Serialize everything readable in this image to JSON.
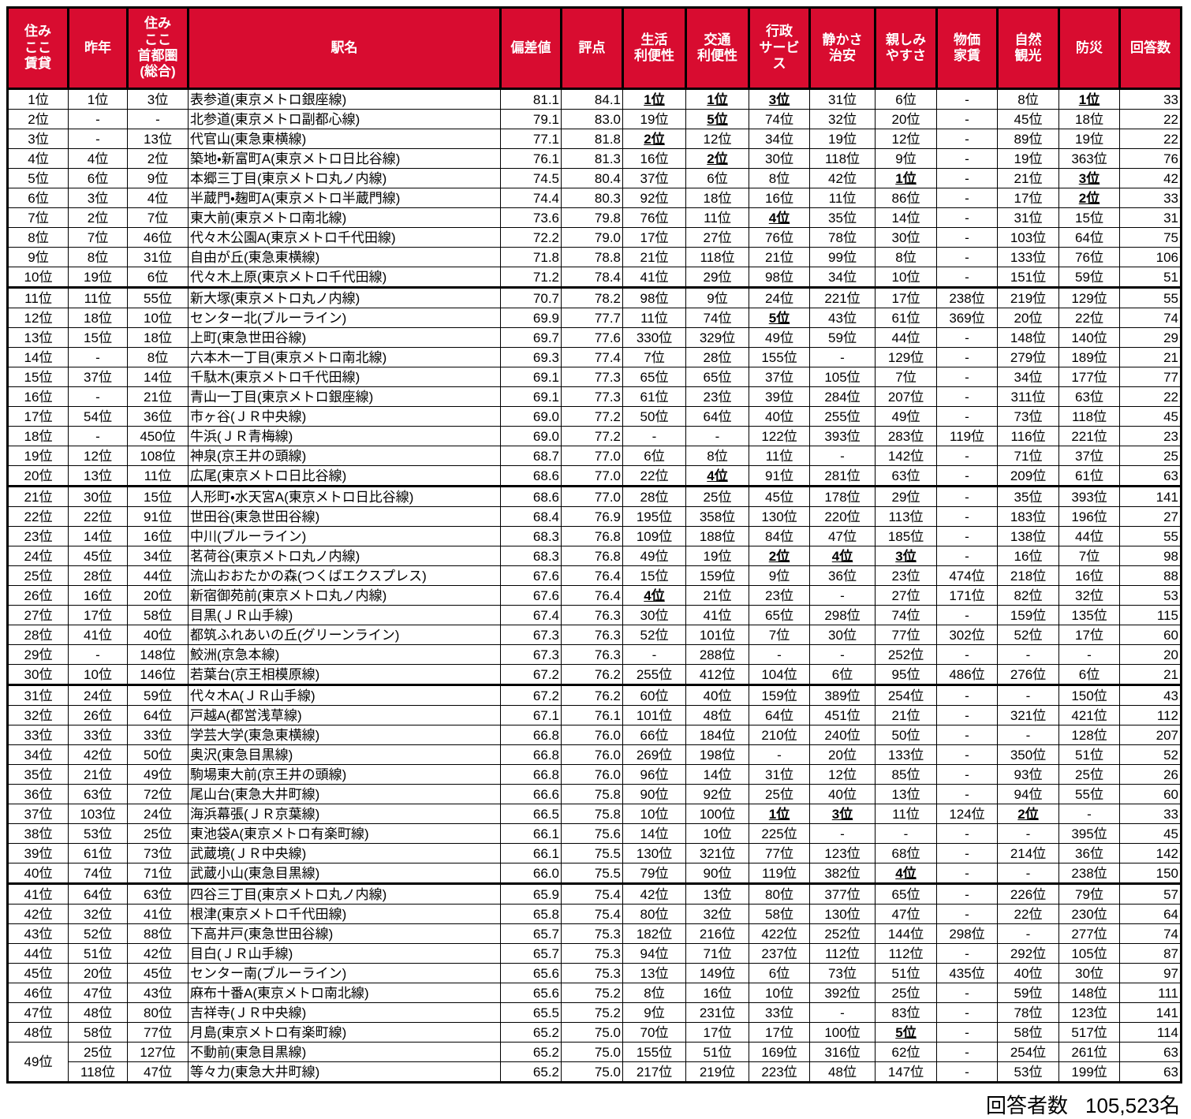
{
  "table": {
    "columns": [
      "住み\nここ\n賃貸",
      "昨年",
      "住み\nここ\n首都圏\n(総合)",
      "駅名",
      "偏差値",
      "評点",
      "生活\n利便性",
      "交通\n利便性",
      "行政\nサービ\nス",
      "静かさ\n治安",
      "親しみ\nやすさ",
      "物価\n家賃",
      "自然\n観光",
      "防災",
      "回答数"
    ],
    "rows": [
      [
        "1位",
        "1位",
        "3位",
        "表参道(東京メトロ銀座線)",
        "81.1",
        "84.1",
        "1位",
        "1位",
        "3位",
        "31位",
        "6位",
        "-",
        "8位",
        "1位",
        "33"
      ],
      [
        "2位",
        "-",
        "-",
        "北参道(東京メトロ副都心線)",
        "79.1",
        "83.0",
        "19位",
        "5位",
        "74位",
        "32位",
        "20位",
        "-",
        "45位",
        "18位",
        "22"
      ],
      [
        "3位",
        "-",
        "13位",
        "代官山(東急東横線)",
        "77.1",
        "81.8",
        "2位",
        "12位",
        "34位",
        "19位",
        "12位",
        "-",
        "89位",
        "19位",
        "22"
      ],
      [
        "4位",
        "4位",
        "2位",
        "築地・新富町A(東京メトロ日比谷線)",
        "76.1",
        "81.3",
        "16位",
        "2位",
        "30位",
        "118位",
        "9位",
        "-",
        "19位",
        "363位",
        "76"
      ],
      [
        "5位",
        "6位",
        "9位",
        "本郷三丁目(東京メトロ丸ノ内線)",
        "74.5",
        "80.4",
        "37位",
        "6位",
        "8位",
        "42位",
        "1位",
        "-",
        "21位",
        "3位",
        "42"
      ],
      [
        "6位",
        "3位",
        "4位",
        "半蔵門・麹町A(東京メトロ半蔵門線)",
        "74.4",
        "80.3",
        "92位",
        "18位",
        "16位",
        "11位",
        "86位",
        "-",
        "17位",
        "2位",
        "33"
      ],
      [
        "7位",
        "2位",
        "7位",
        "東大前(東京メトロ南北線)",
        "73.6",
        "79.8",
        "76位",
        "11位",
        "4位",
        "35位",
        "14位",
        "-",
        "31位",
        "15位",
        "31"
      ],
      [
        "8位",
        "7位",
        "46位",
        "代々木公園A(東京メトロ千代田線)",
        "72.2",
        "79.0",
        "17位",
        "27位",
        "76位",
        "78位",
        "30位",
        "-",
        "103位",
        "64位",
        "75"
      ],
      [
        "9位",
        "8位",
        "31位",
        "自由が丘(東急東横線)",
        "71.8",
        "78.8",
        "21位",
        "118位",
        "21位",
        "99位",
        "8位",
        "-",
        "133位",
        "76位",
        "106"
      ],
      [
        "10位",
        "19位",
        "6位",
        "代々木上原(東京メトロ千代田線)",
        "71.2",
        "78.4",
        "41位",
        "29位",
        "98位",
        "34位",
        "10位",
        "-",
        "151位",
        "59位",
        "51"
      ],
      [
        "11位",
        "11位",
        "55位",
        "新大塚(東京メトロ丸ノ内線)",
        "70.7",
        "78.2",
        "98位",
        "9位",
        "24位",
        "221位",
        "17位",
        "238位",
        "219位",
        "129位",
        "55"
      ],
      [
        "12位",
        "18位",
        "10位",
        "センター北(ブルーライン)",
        "69.9",
        "77.7",
        "11位",
        "74位",
        "5位",
        "43位",
        "61位",
        "369位",
        "20位",
        "22位",
        "74"
      ],
      [
        "13位",
        "15位",
        "18位",
        "上町(東急世田谷線)",
        "69.7",
        "77.6",
        "330位",
        "329位",
        "49位",
        "59位",
        "44位",
        "-",
        "148位",
        "140位",
        "29"
      ],
      [
        "14位",
        "-",
        "8位",
        "六本木一丁目(東京メトロ南北線)",
        "69.3",
        "77.4",
        "7位",
        "28位",
        "155位",
        "-",
        "129位",
        "-",
        "279位",
        "189位",
        "21"
      ],
      [
        "15位",
        "37位",
        "14位",
        "千駄木(東京メトロ千代田線)",
        "69.1",
        "77.3",
        "65位",
        "65位",
        "37位",
        "105位",
        "7位",
        "-",
        "34位",
        "177位",
        "77"
      ],
      [
        "16位",
        "-",
        "21位",
        "青山一丁目(東京メトロ銀座線)",
        "69.1",
        "77.3",
        "61位",
        "23位",
        "39位",
        "284位",
        "207位",
        "-",
        "311位",
        "63位",
        "22"
      ],
      [
        "17位",
        "54位",
        "36位",
        "市ヶ谷(ＪＲ中央線)",
        "69.0",
        "77.2",
        "50位",
        "64位",
        "40位",
        "255位",
        "49位",
        "-",
        "73位",
        "118位",
        "45"
      ],
      [
        "18位",
        "-",
        "450位",
        "牛浜(ＪＲ青梅線)",
        "69.0",
        "77.2",
        "-",
        "-",
        "122位",
        "393位",
        "283位",
        "119位",
        "116位",
        "221位",
        "23"
      ],
      [
        "19位",
        "12位",
        "108位",
        "神泉(京王井の頭線)",
        "68.7",
        "77.0",
        "6位",
        "8位",
        "11位",
        "-",
        "142位",
        "-",
        "71位",
        "37位",
        "25"
      ],
      [
        "20位",
        "13位",
        "11位",
        "広尾(東京メトロ日比谷線)",
        "68.6",
        "77.0",
        "22位",
        "4位",
        "91位",
        "281位",
        "63位",
        "-",
        "209位",
        "61位",
        "63"
      ],
      [
        "21位",
        "30位",
        "15位",
        "人形町・水天宮A(東京メトロ日比谷線)",
        "68.6",
        "77.0",
        "28位",
        "25位",
        "45位",
        "178位",
        "29位",
        "-",
        "35位",
        "393位",
        "141"
      ],
      [
        "22位",
        "22位",
        "91位",
        "世田谷(東急世田谷線)",
        "68.4",
        "76.9",
        "195位",
        "358位",
        "130位",
        "220位",
        "113位",
        "-",
        "183位",
        "196位",
        "27"
      ],
      [
        "23位",
        "14位",
        "16位",
        "中川(ブルーライン)",
        "68.3",
        "76.8",
        "109位",
        "188位",
        "84位",
        "47位",
        "185位",
        "-",
        "138位",
        "44位",
        "55"
      ],
      [
        "24位",
        "45位",
        "34位",
        "茗荷谷(東京メトロ丸ノ内線)",
        "68.3",
        "76.8",
        "49位",
        "19位",
        "2位",
        "4位",
        "3位",
        "-",
        "16位",
        "7位",
        "98"
      ],
      [
        "25位",
        "28位",
        "44位",
        "流山おおたかの森(つくばエクスプレス)",
        "67.6",
        "76.4",
        "15位",
        "159位",
        "9位",
        "36位",
        "23位",
        "474位",
        "218位",
        "16位",
        "88"
      ],
      [
        "26位",
        "16位",
        "20位",
        "新宿御苑前(東京メトロ丸ノ内線)",
        "67.6",
        "76.4",
        "4位",
        "21位",
        "23位",
        "-",
        "27位",
        "171位",
        "82位",
        "32位",
        "53"
      ],
      [
        "27位",
        "17位",
        "58位",
        "目黒(ＪＲ山手線)",
        "67.4",
        "76.3",
        "30位",
        "41位",
        "65位",
        "298位",
        "74位",
        "-",
        "159位",
        "135位",
        "115"
      ],
      [
        "28位",
        "41位",
        "40位",
        "都筑ふれあいの丘(グリーンライン)",
        "67.3",
        "76.3",
        "52位",
        "101位",
        "7位",
        "30位",
        "77位",
        "302位",
        "52位",
        "17位",
        "60"
      ],
      [
        "29位",
        "-",
        "148位",
        "鮫洲(京急本線)",
        "67.3",
        "76.3",
        "-",
        "288位",
        "-",
        "-",
        "252位",
        "-",
        "-",
        "-",
        "20"
      ],
      [
        "30位",
        "10位",
        "146位",
        "若葉台(京王相模原線)",
        "67.2",
        "76.2",
        "255位",
        "412位",
        "104位",
        "6位",
        "95位",
        "486位",
        "276位",
        "6位",
        "21"
      ],
      [
        "31位",
        "24位",
        "59位",
        "代々木A(ＪＲ山手線)",
        "67.2",
        "76.2",
        "60位",
        "40位",
        "159位",
        "389位",
        "254位",
        "-",
        "-",
        "150位",
        "43"
      ],
      [
        "32位",
        "26位",
        "64位",
        "戸越A(都営浅草線)",
        "67.1",
        "76.1",
        "101位",
        "48位",
        "64位",
        "451位",
        "21位",
        "-",
        "321位",
        "421位",
        "112"
      ],
      [
        "33位",
        "33位",
        "33位",
        "学芸大学(東急東横線)",
        "66.8",
        "76.0",
        "66位",
        "184位",
        "210位",
        "240位",
        "50位",
        "-",
        "-",
        "128位",
        "207"
      ],
      [
        "34位",
        "42位",
        "50位",
        "奥沢(東急目黒線)",
        "66.8",
        "76.0",
        "269位",
        "198位",
        "-",
        "20位",
        "133位",
        "-",
        "350位",
        "51位",
        "52"
      ],
      [
        "35位",
        "21位",
        "49位",
        "駒場東大前(京王井の頭線)",
        "66.8",
        "76.0",
        "96位",
        "14位",
        "31位",
        "12位",
        "85位",
        "-",
        "93位",
        "25位",
        "26"
      ],
      [
        "36位",
        "63位",
        "72位",
        "尾山台(東急大井町線)",
        "66.6",
        "75.8",
        "90位",
        "92位",
        "25位",
        "40位",
        "13位",
        "-",
        "94位",
        "55位",
        "60"
      ],
      [
        "37位",
        "103位",
        "24位",
        "海浜幕張(ＪＲ京葉線)",
        "66.5",
        "75.8",
        "10位",
        "100位",
        "1位",
        "3位",
        "11位",
        "124位",
        "2位",
        "-",
        "33"
      ],
      [
        "38位",
        "53位",
        "25位",
        "東池袋A(東京メトロ有楽町線)",
        "66.1",
        "75.6",
        "14位",
        "10位",
        "225位",
        "-",
        "-",
        "-",
        "-",
        "395位",
        "45"
      ],
      [
        "39位",
        "61位",
        "73位",
        "武蔵境(ＪＲ中央線)",
        "66.1",
        "75.5",
        "130位",
        "321位",
        "77位",
        "123位",
        "68位",
        "-",
        "214位",
        "36位",
        "142"
      ],
      [
        "40位",
        "74位",
        "71位",
        "武蔵小山(東急目黒線)",
        "66.0",
        "75.5",
        "79位",
        "90位",
        "119位",
        "382位",
        "4位",
        "-",
        "-",
        "238位",
        "150"
      ],
      [
        "41位",
        "64位",
        "63位",
        "四谷三丁目(東京メトロ丸ノ内線)",
        "65.9",
        "75.4",
        "42位",
        "13位",
        "80位",
        "377位",
        "65位",
        "-",
        "226位",
        "79位",
        "57"
      ],
      [
        "42位",
        "32位",
        "41位",
        "根津(東京メトロ千代田線)",
        "65.8",
        "75.4",
        "80位",
        "32位",
        "58位",
        "130位",
        "47位",
        "-",
        "22位",
        "230位",
        "64"
      ],
      [
        "43位",
        "52位",
        "88位",
        "下高井戸(東急世田谷線)",
        "65.7",
        "75.3",
        "182位",
        "216位",
        "422位",
        "252位",
        "144位",
        "298位",
        "-",
        "277位",
        "74"
      ],
      [
        "44位",
        "51位",
        "42位",
        "目白(ＪＲ山手線)",
        "65.7",
        "75.3",
        "94位",
        "71位",
        "237位",
        "112位",
        "112位",
        "-",
        "292位",
        "105位",
        "87"
      ],
      [
        "45位",
        "20位",
        "45位",
        "センター南(ブルーライン)",
        "65.6",
        "75.3",
        "13位",
        "149位",
        "6位",
        "73位",
        "51位",
        "435位",
        "40位",
        "30位",
        "97"
      ],
      [
        "46位",
        "47位",
        "43位",
        "麻布十番A(東京メトロ南北線)",
        "65.6",
        "75.2",
        "8位",
        "16位",
        "10位",
        "392位",
        "25位",
        "-",
        "59位",
        "148位",
        "111"
      ],
      [
        "47位",
        "48位",
        "80位",
        "吉祥寺(ＪＲ中央線)",
        "65.5",
        "75.2",
        "9位",
        "231位",
        "33位",
        "-",
        "83位",
        "-",
        "78位",
        "123位",
        "141"
      ],
      [
        "48位",
        "58位",
        "77位",
        "月島(東京メトロ有楽町線)",
        "65.2",
        "75.0",
        "70位",
        "17位",
        "17位",
        "100位",
        "5位",
        "-",
        "58位",
        "517位",
        "114"
      ],
      [
        "49位",
        "25位",
        "127位",
        "不動前(東急目黒線)",
        "65.2",
        "75.0",
        "155位",
        "51位",
        "169位",
        "316位",
        "62位",
        "-",
        "254位",
        "261位",
        "63"
      ],
      [
        null,
        "118位",
        "47位",
        "等々力(東急大井町線)",
        "65.2",
        "75.0",
        "217位",
        "219位",
        "223位",
        "48位",
        "147位",
        "-",
        "53位",
        "199位",
        "63"
      ]
    ],
    "merges": [
      {
        "row": 48,
        "col": 0,
        "rowspan": 2
      }
    ]
  },
  "footer": {
    "respondents_label": "回答者数",
    "respondents_value": "105,523名"
  },
  "colors": {
    "header_red": "#d80c30",
    "border": "#000000",
    "header_text": "#ffffff"
  }
}
